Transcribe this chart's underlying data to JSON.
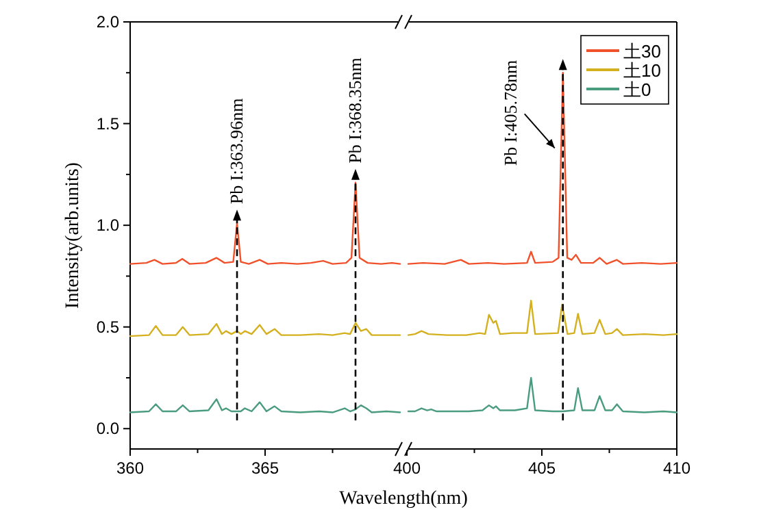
{
  "chart_data": [
    {
      "type": "line",
      "xlabel": "Wavelength(nm)",
      "ylabel": "Intensity(arb.units)",
      "xlim": [
        360,
        370
      ],
      "xticks": [
        360,
        {
          "value": 362.5,
          "label": null
        },
        365,
        {
          "value": 367.5,
          "label": null
        }
      ],
      "ylim": [
        -0.1,
        2.0
      ],
      "yticks": [
        {
          "value": 0,
          "label": "0.0"
        },
        {
          "value": 0.25,
          "label": null
        },
        0.5,
        {
          "value": 0.75,
          "label": null
        },
        {
          "value": 1,
          "label": "1.0"
        },
        {
          "value": 1.25,
          "label": null
        },
        1.5,
        {
          "value": 1.75,
          "label": null
        },
        {
          "value": 2,
          "label": "2.0"
        }
      ],
      "ref_lines": [
        {
          "axis": "x",
          "value": 363.96,
          "label": "Pb I:363.96nm",
          "color": "#000000",
          "line_style": "dashed"
        },
        {
          "axis": "x",
          "value": 368.35,
          "label": "Pb I:368.35nm",
          "color": "#000000",
          "line_style": "dashed"
        }
      ],
      "series": [
        {
          "color": "#f0512a",
          "x": [
            360,
            360.6,
            360.9,
            361.2,
            361.7,
            361.93,
            362.2,
            362.8,
            363.2,
            363.5,
            363.82,
            363.96,
            364.1,
            364.4,
            364.8,
            365.1,
            365.6,
            366.2,
            366.7,
            367.15,
            367.5,
            368.0,
            368.2,
            368.35,
            368.5,
            368.8,
            369.3,
            369.7,
            370
          ],
          "values": [
            0.81,
            0.815,
            0.83,
            0.81,
            0.815,
            0.835,
            0.81,
            0.815,
            0.84,
            0.815,
            0.82,
            1.01,
            0.82,
            0.81,
            0.83,
            0.81,
            0.815,
            0.81,
            0.815,
            0.825,
            0.81,
            0.815,
            0.84,
            1.21,
            0.84,
            0.815,
            0.81,
            0.815,
            0.81
          ]
        },
        {
          "color": "#d4b01e",
          "x": [
            360,
            360.7,
            360.95,
            361.2,
            361.7,
            361.95,
            362.2,
            362.9,
            363.2,
            363.4,
            363.55,
            363.75,
            363.96,
            364.1,
            364.25,
            364.5,
            364.8,
            365.05,
            365.35,
            365.6,
            366.3,
            367.0,
            367.5,
            367.95,
            368.15,
            368.35,
            368.55,
            368.75,
            368.95,
            369.5,
            370
          ],
          "values": [
            0.455,
            0.46,
            0.505,
            0.46,
            0.46,
            0.5,
            0.46,
            0.465,
            0.515,
            0.465,
            0.48,
            0.465,
            0.48,
            0.465,
            0.48,
            0.465,
            0.51,
            0.465,
            0.49,
            0.46,
            0.46,
            0.465,
            0.46,
            0.47,
            0.465,
            0.52,
            0.48,
            0.49,
            0.46,
            0.46,
            0.46
          ]
        },
        {
          "color": "#4a9c7e",
          "x": [
            360,
            360.7,
            360.95,
            361.2,
            361.7,
            361.95,
            362.2,
            362.9,
            363.2,
            363.4,
            363.55,
            363.75,
            364.1,
            364.25,
            364.5,
            364.8,
            365.05,
            365.35,
            365.6,
            366.3,
            367.0,
            367.5,
            367.95,
            368.15,
            368.35,
            368.55,
            368.75,
            368.95,
            369.5,
            370
          ],
          "values": [
            0.08,
            0.085,
            0.12,
            0.085,
            0.085,
            0.115,
            0.085,
            0.09,
            0.145,
            0.09,
            0.1,
            0.085,
            0.085,
            0.1,
            0.085,
            0.13,
            0.085,
            0.11,
            0.085,
            0.08,
            0.085,
            0.08,
            0.1,
            0.085,
            0.095,
            0.115,
            0.1,
            0.08,
            0.085,
            0.08
          ]
        }
      ]
    },
    {
      "type": "line",
      "xlim": [
        400,
        410
      ],
      "xticks": [
        400,
        {
          "value": 402.5,
          "label": null
        },
        405,
        {
          "value": 407.5,
          "label": null
        },
        410
      ],
      "ylim": [
        -0.1,
        2.0
      ],
      "tick_labels": "x",
      "legend": "top right",
      "ref_lines": [
        {
          "axis": "x",
          "value": 405.78,
          "label": "Pb I:405.78nm",
          "color": "#000000",
          "line_style": "dashed"
        }
      ],
      "series": [
        {
          "name": "土30",
          "color": "#f0512a",
          "x": [
            400.05,
            400.6,
            401.4,
            402.0,
            402.3,
            403,
            403.6,
            404.45,
            404.6,
            404.75,
            405.4,
            405.62,
            405.78,
            405.94,
            406.1,
            406.26,
            406.45,
            406.9,
            407.14,
            407.4,
            407.78,
            408,
            408.7,
            409.4,
            410
          ],
          "values": [
            0.81,
            0.815,
            0.81,
            0.83,
            0.81,
            0.815,
            0.81,
            0.815,
            0.87,
            0.815,
            0.82,
            0.84,
            1.75,
            0.84,
            0.83,
            0.855,
            0.815,
            0.815,
            0.84,
            0.81,
            0.83,
            0.81,
            0.815,
            0.81,
            0.815
          ]
        },
        {
          "name": "土10",
          "color": "#d4b01e",
          "x": [
            400.05,
            400.3,
            400.54,
            400.8,
            401.5,
            402.2,
            402.7,
            402.9,
            403.04,
            403.2,
            403.3,
            403.45,
            403.9,
            404.45,
            404.6,
            404.75,
            405.6,
            405.75,
            405.95,
            406.2,
            406.34,
            406.5,
            406.95,
            407.14,
            407.35,
            407.6,
            407.78,
            408,
            408.8,
            409.5,
            410
          ],
          "values": [
            0.46,
            0.465,
            0.48,
            0.465,
            0.46,
            0.46,
            0.47,
            0.465,
            0.56,
            0.52,
            0.53,
            0.465,
            0.47,
            0.47,
            0.63,
            0.465,
            0.47,
            0.61,
            0.465,
            0.47,
            0.565,
            0.465,
            0.47,
            0.535,
            0.465,
            0.47,
            0.49,
            0.46,
            0.465,
            0.46,
            0.465
          ]
        },
        {
          "name": "土0",
          "color": "#4a9c7e",
          "x": [
            400.05,
            400.3,
            400.54,
            400.75,
            400.9,
            401.1,
            401.8,
            402.3,
            402.8,
            403.04,
            403.2,
            403.3,
            403.45,
            404.0,
            404.45,
            404.6,
            404.75,
            405.4,
            405.78,
            406.2,
            406.34,
            406.5,
            406.95,
            407.14,
            407.35,
            407.6,
            407.78,
            408,
            408.8,
            409.5,
            410
          ],
          "values": [
            0.085,
            0.085,
            0.1,
            0.09,
            0.095,
            0.085,
            0.085,
            0.085,
            0.09,
            0.115,
            0.1,
            0.11,
            0.09,
            0.09,
            0.1,
            0.25,
            0.09,
            0.085,
            0.085,
            0.09,
            0.2,
            0.09,
            0.09,
            0.16,
            0.09,
            0.09,
            0.12,
            0.085,
            0.08,
            0.085,
            0.08
          ]
        }
      ]
    }
  ]
}
